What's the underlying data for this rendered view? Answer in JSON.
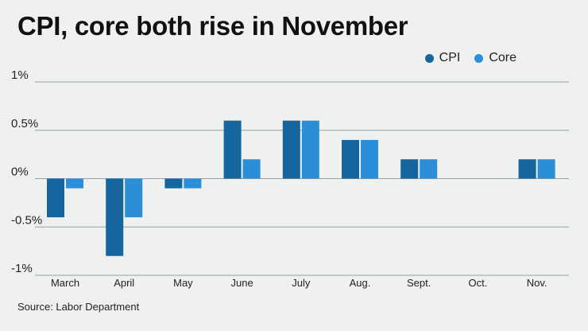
{
  "title": "CPI, core both rise in November",
  "source": "Source: Labor Department",
  "colors": {
    "cpi": "#15659e",
    "core": "#2a8fd8",
    "grid": "#9aa0a4",
    "background": "#eff1f1"
  },
  "chart_data": {
    "type": "bar",
    "title": "CPI, core both rise in November",
    "categories": [
      "March",
      "April",
      "May",
      "June",
      "July",
      "Aug.",
      "Sept.",
      "Oct.",
      "Nov."
    ],
    "series": [
      {
        "name": "CPI",
        "values": [
          -0.4,
          -0.8,
          -0.1,
          0.6,
          0.6,
          0.4,
          0.2,
          0.0,
          0.2
        ]
      },
      {
        "name": "Core",
        "values": [
          -0.1,
          -0.4,
          -0.1,
          0.2,
          0.6,
          0.4,
          0.2,
          0.0,
          0.2
        ]
      }
    ],
    "ylim": [
      -1,
      1
    ],
    "yticks": [
      1,
      0.5,
      0,
      -0.5,
      -1
    ],
    "ytick_labels": [
      "1%",
      "0.5%",
      "0%",
      "-0.5%",
      "-1%"
    ],
    "grid": true,
    "legend_position": "top-right",
    "xlabel": "",
    "ylabel": ""
  }
}
